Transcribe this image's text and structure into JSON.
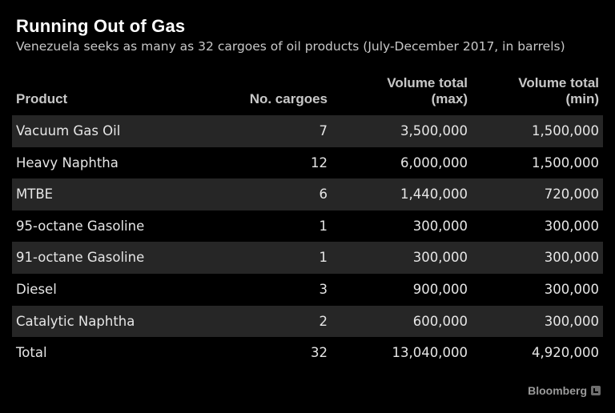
{
  "chart_data": {
    "type": "table",
    "title": "Running Out of Gas",
    "subtitle": "Venezuela seeks as many as 32 cargoes of oil products (July-December 2017, in barrels)",
    "columns": {
      "product": "Product",
      "cargoes": "No. cargoes",
      "max_line1": "Volume total",
      "max_line2": "(max)",
      "min_line1": "Volume total",
      "min_line2": "(min)"
    },
    "rows": [
      {
        "product": "Vacuum Gas Oil",
        "cargoes": "7",
        "max": "3,500,000",
        "min": "1,500,000"
      },
      {
        "product": "Heavy Naphtha",
        "cargoes": "12",
        "max": "6,000,000",
        "min": "1,500,000"
      },
      {
        "product": "MTBE",
        "cargoes": "6",
        "max": "1,440,000",
        "min": "720,000"
      },
      {
        "product": "95-octane Gasoline",
        "cargoes": "1",
        "max": "300,000",
        "min": "300,000"
      },
      {
        "product": "91-octane Gasoline",
        "cargoes": "1",
        "max": "300,000",
        "min": "300,000"
      },
      {
        "product": "Diesel",
        "cargoes": "3",
        "max": "900,000",
        "min": "300,000"
      },
      {
        "product": "Catalytic Naphtha",
        "cargoes": "2",
        "max": "600,000",
        "min": "300,000"
      }
    ],
    "total": {
      "product": "Total",
      "cargoes": "32",
      "max": "13,040,000",
      "min": "4,920,000"
    }
  },
  "source": "Bloomberg",
  "colors": {
    "background": "#000000",
    "stripe": "#262626",
    "text": "#e6e6e6"
  }
}
